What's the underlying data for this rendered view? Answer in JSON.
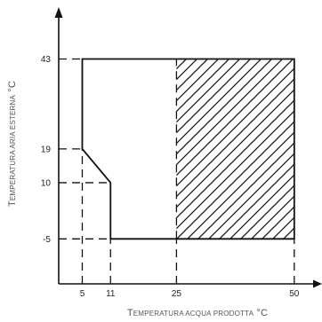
{
  "chart_data": {
    "type": "area",
    "title": "",
    "xlabel_parts": [
      "T",
      "EMPERATURA ACQUA PRODOTTA",
      " °C"
    ],
    "ylabel_parts": [
      "T",
      "EMPERATURA ARIA ESTERNA",
      " °C"
    ],
    "x_ticks": [
      5,
      11,
      25,
      50
    ],
    "y_ticks": [
      -5,
      10,
      19,
      43
    ],
    "x_tick_labels": [
      "5",
      "11",
      "25",
      "50"
    ],
    "y_tick_labels": [
      "-5",
      "10",
      "19",
      "43"
    ],
    "xlim": [
      0,
      54
    ],
    "ylim": [
      -17,
      54
    ],
    "operating_envelope": [
      [
        5,
        43
      ],
      [
        50,
        43
      ],
      [
        50,
        -5
      ],
      [
        11,
        -5
      ],
      [
        11,
        10
      ],
      [
        5,
        19
      ]
    ],
    "hatched_region": [
      [
        25,
        43
      ],
      [
        50,
        43
      ],
      [
        50,
        -5
      ],
      [
        25,
        -5
      ]
    ],
    "grid": false
  }
}
